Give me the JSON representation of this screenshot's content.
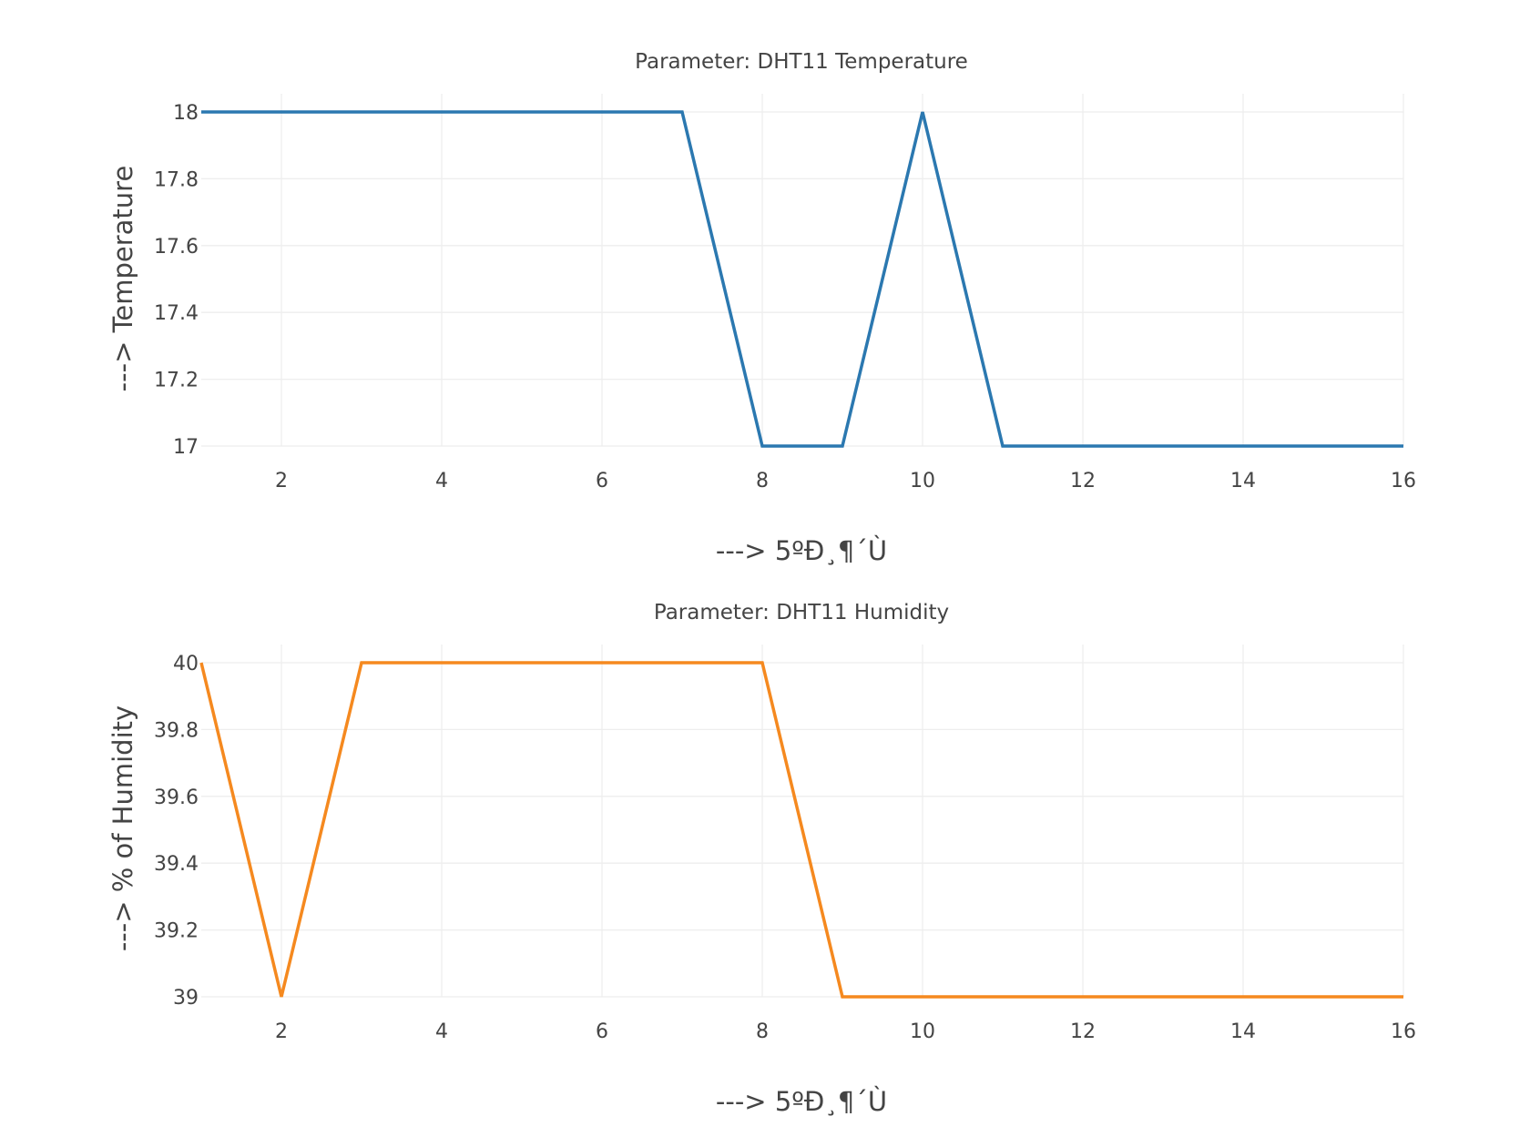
{
  "chart_data": [
    {
      "type": "line",
      "title": "Parameter: DHT11 Temperature",
      "xlabel": "---> 5ºÐ¸¶´Ù",
      "ylabel": "---> Temperature",
      "xlim": [
        1,
        16
      ],
      "ylim": [
        17,
        18
      ],
      "xticks": [
        2,
        4,
        6,
        8,
        10,
        12,
        14,
        16
      ],
      "yticks": [
        17,
        17.2,
        17.4,
        17.6,
        17.8,
        18
      ],
      "grid": true,
      "color": "#2b78b0",
      "series": [
        {
          "x": [
            1,
            2,
            3,
            4,
            5,
            6,
            7,
            8,
            9,
            10,
            11,
            12,
            13,
            14,
            15,
            16
          ],
          "y": [
            18,
            18,
            18,
            18,
            18,
            18,
            18,
            17,
            17,
            18,
            17,
            17,
            17,
            17,
            17,
            17
          ]
        }
      ]
    },
    {
      "type": "line",
      "title": "Parameter: DHT11 Humidity",
      "xlabel": "---> 5ºÐ¸¶´Ù",
      "ylabel": "---> % of Humidity",
      "xlim": [
        1,
        16
      ],
      "ylim": [
        39,
        40
      ],
      "xticks": [
        2,
        4,
        6,
        8,
        10,
        12,
        14,
        16
      ],
      "yticks": [
        39,
        39.2,
        39.4,
        39.6,
        39.8,
        40
      ],
      "grid": true,
      "color": "#f5891f",
      "series": [
        {
          "x": [
            1,
            2,
            3,
            4,
            5,
            6,
            7,
            8,
            9,
            10,
            11,
            12,
            13,
            14,
            15,
            16
          ],
          "y": [
            40,
            39,
            40,
            40,
            40,
            40,
            40,
            40,
            39,
            39,
            39,
            39,
            39,
            39,
            39,
            39
          ]
        }
      ]
    }
  ]
}
